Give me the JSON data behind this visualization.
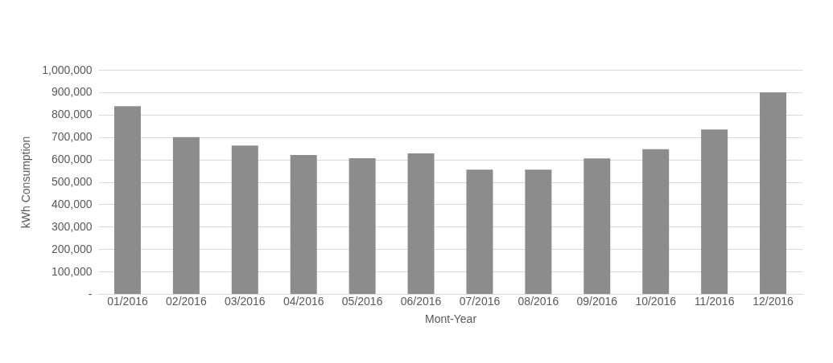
{
  "chart_data": {
    "type": "bar",
    "xlabel": "Mont-Year",
    "ylabel": "kWh Consumption",
    "categories": [
      "01/2016",
      "02/2016",
      "03/2016",
      "04/2016",
      "05/2016",
      "06/2016",
      "07/2016",
      "08/2016",
      "09/2016",
      "10/2016",
      "11/2016",
      "12/2016"
    ],
    "values": [
      838000,
      700000,
      662000,
      620000,
      606000,
      627000,
      555000,
      555000,
      605000,
      646000,
      734000,
      900000
    ],
    "color": "#8c8c8c",
    "ylim": [
      0,
      1000000
    ],
    "yticks": [
      {
        "value": 0,
        "label": "-"
      },
      {
        "value": 100000,
        "label": "100,000"
      },
      {
        "value": 200000,
        "label": "200,000"
      },
      {
        "value": 300000,
        "label": "300,000"
      },
      {
        "value": 400000,
        "label": "400,000"
      },
      {
        "value": 500000,
        "label": "500,000"
      },
      {
        "value": 600000,
        "label": "600,000"
      },
      {
        "value": 700000,
        "label": "700,000"
      },
      {
        "value": 800000,
        "label": "800,000"
      },
      {
        "value": 900000,
        "label": "900,000"
      },
      {
        "value": 1000000,
        "label": "1,000,000"
      }
    ],
    "grid": "y"
  }
}
